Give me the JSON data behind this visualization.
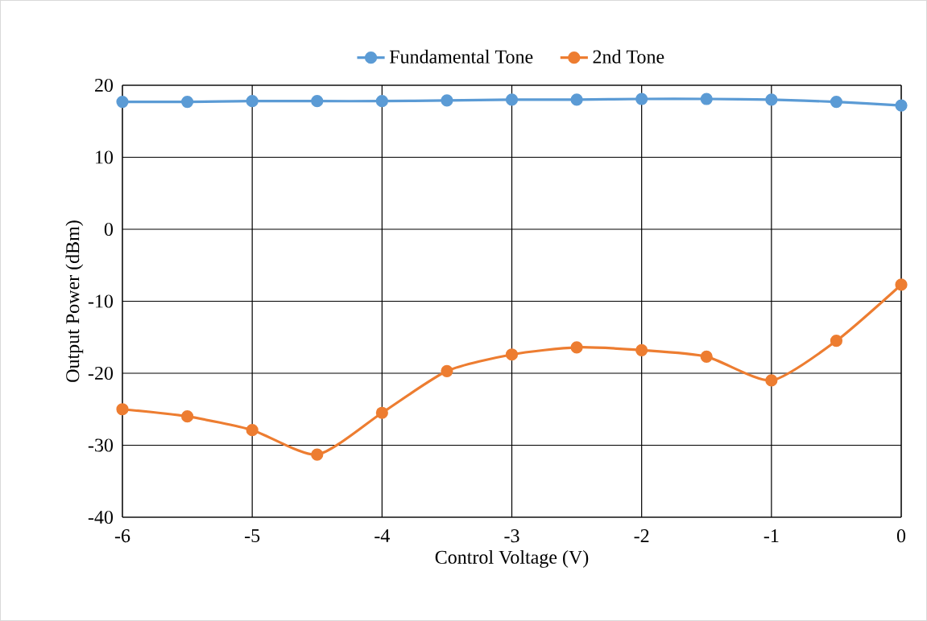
{
  "chart_data": {
    "type": "line",
    "xlabel": "Control Voltage (V)",
    "ylabel": "Output Power (dBm)",
    "x": [
      -6,
      -5.5,
      -5,
      -4.5,
      -4,
      -3.5,
      -3,
      -2.5,
      -2,
      -1.5,
      -1,
      -0.5,
      0
    ],
    "series": [
      {
        "name": "Fundamental Tone",
        "color": "#5b9bd5",
        "values": [
          17.7,
          17.7,
          17.8,
          17.8,
          17.8,
          17.9,
          18.0,
          18.0,
          18.1,
          18.1,
          18.0,
          17.7,
          17.2
        ]
      },
      {
        "name": "2nd Tone",
        "color": "#ed7d31",
        "values": [
          -25.0,
          -26.0,
          -27.9,
          -31.3,
          -25.5,
          -19.7,
          -17.4,
          -16.4,
          -16.8,
          -17.7,
          -21.0,
          -15.5,
          -7.7
        ]
      }
    ],
    "xlim": [
      -6,
      0
    ],
    "xticks": [
      -6,
      -5,
      -4,
      -3,
      -2,
      -1,
      0
    ],
    "ylim": [
      -40,
      20
    ],
    "yticks": [
      -40,
      -30,
      -20,
      -10,
      0,
      10,
      20
    ],
    "grid": true,
    "legend": "top",
    "marker": "circle",
    "line_style": "solid"
  }
}
